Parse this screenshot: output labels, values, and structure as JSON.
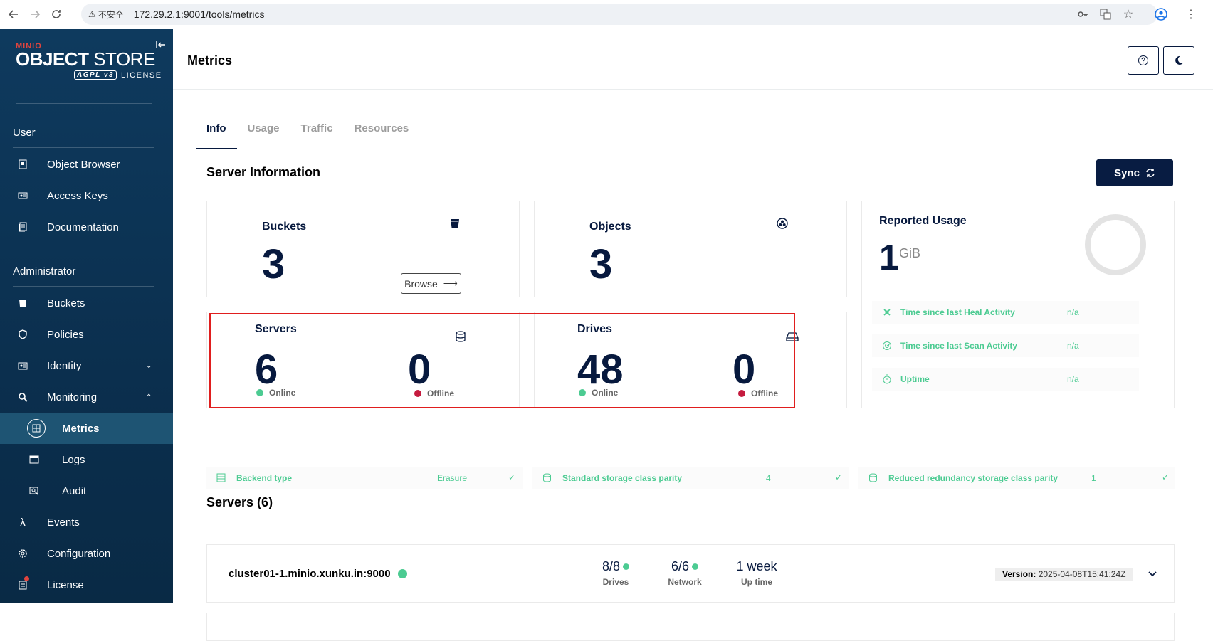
{
  "browser": {
    "security_label": "不安全",
    "url": "172.29.2.1:9001/tools/metrics"
  },
  "sidebar": {
    "logo": {
      "brand": "MINIO",
      "product_bold": "OBJECT",
      "product_light": "STORE",
      "edition_badge": "AGPL v3",
      "license": "LICENSE"
    },
    "sections": [
      {
        "title": "User",
        "items": [
          {
            "label": "Object Browser",
            "icon": "object-browser-icon"
          },
          {
            "label": "Access Keys",
            "icon": "access-keys-icon"
          },
          {
            "label": "Documentation",
            "icon": "documentation-icon"
          }
        ]
      },
      {
        "title": "Administrator",
        "items": [
          {
            "label": "Buckets",
            "icon": "buckets-icon"
          },
          {
            "label": "Policies",
            "icon": "policies-icon"
          },
          {
            "label": "Identity",
            "icon": "identity-icon"
          },
          {
            "label": "Monitoring",
            "icon": "monitoring-icon"
          },
          {
            "label": "Metrics",
            "icon": "metrics-icon"
          },
          {
            "label": "Logs",
            "icon": "logs-icon"
          },
          {
            "label": "Audit",
            "icon": "audit-icon"
          },
          {
            "label": "Events",
            "icon": "lambda-icon"
          },
          {
            "label": "Configuration",
            "icon": "configuration-icon"
          },
          {
            "label": "License",
            "icon": "license-icon"
          }
        ]
      }
    ],
    "active_item": "Metrics"
  },
  "page": {
    "title": "Metrics",
    "tabs": [
      "Info",
      "Usage",
      "Traffic",
      "Resources"
    ],
    "active_tab": "Info"
  },
  "info": {
    "section_title": "Server Information",
    "sync_label": "Sync",
    "buckets": {
      "title": "Buckets",
      "value": "3",
      "browse_label": "Browse"
    },
    "objects": {
      "title": "Objects",
      "value": "3"
    },
    "servers": {
      "title": "Servers",
      "online": "6",
      "offline": "0",
      "online_label": "Online",
      "offline_label": "Offline"
    },
    "drives": {
      "title": "Drives",
      "online": "48",
      "offline": "0",
      "online_label": "Online",
      "offline_label": "Offline"
    },
    "reported_usage": {
      "title": "Reported Usage",
      "value": "1",
      "unit": "GiB",
      "rows": [
        {
          "label": "Time since last Heal Activity",
          "value": "n/a"
        },
        {
          "label": "Time since last Scan Activity",
          "value": "n/a"
        },
        {
          "label": "Uptime",
          "value": "n/a"
        }
      ]
    },
    "strips": [
      {
        "label": "Backend type",
        "value": "Erasure"
      },
      {
        "label": "Standard storage class parity",
        "value": "4"
      },
      {
        "label": "Reduced redundancy storage class parity",
        "value": "1"
      }
    ]
  },
  "servers_list": {
    "title": "Servers (6)",
    "items": [
      {
        "name": "cluster01-1.minio.xunku.in:9000",
        "drives": "8/8",
        "drives_label": "Drives",
        "network": "6/6",
        "network_label": "Network",
        "uptime": "1 week",
        "uptime_label": "Up time",
        "version_label": "Version:",
        "version": "2025-04-08T15:41:24Z"
      }
    ]
  },
  "colors": {
    "sidebar": "#0e3a5e",
    "accent": "#081c42",
    "online": "#4ccb92",
    "offline": "#c51b3f",
    "highlight_box": "#e01e1e"
  }
}
